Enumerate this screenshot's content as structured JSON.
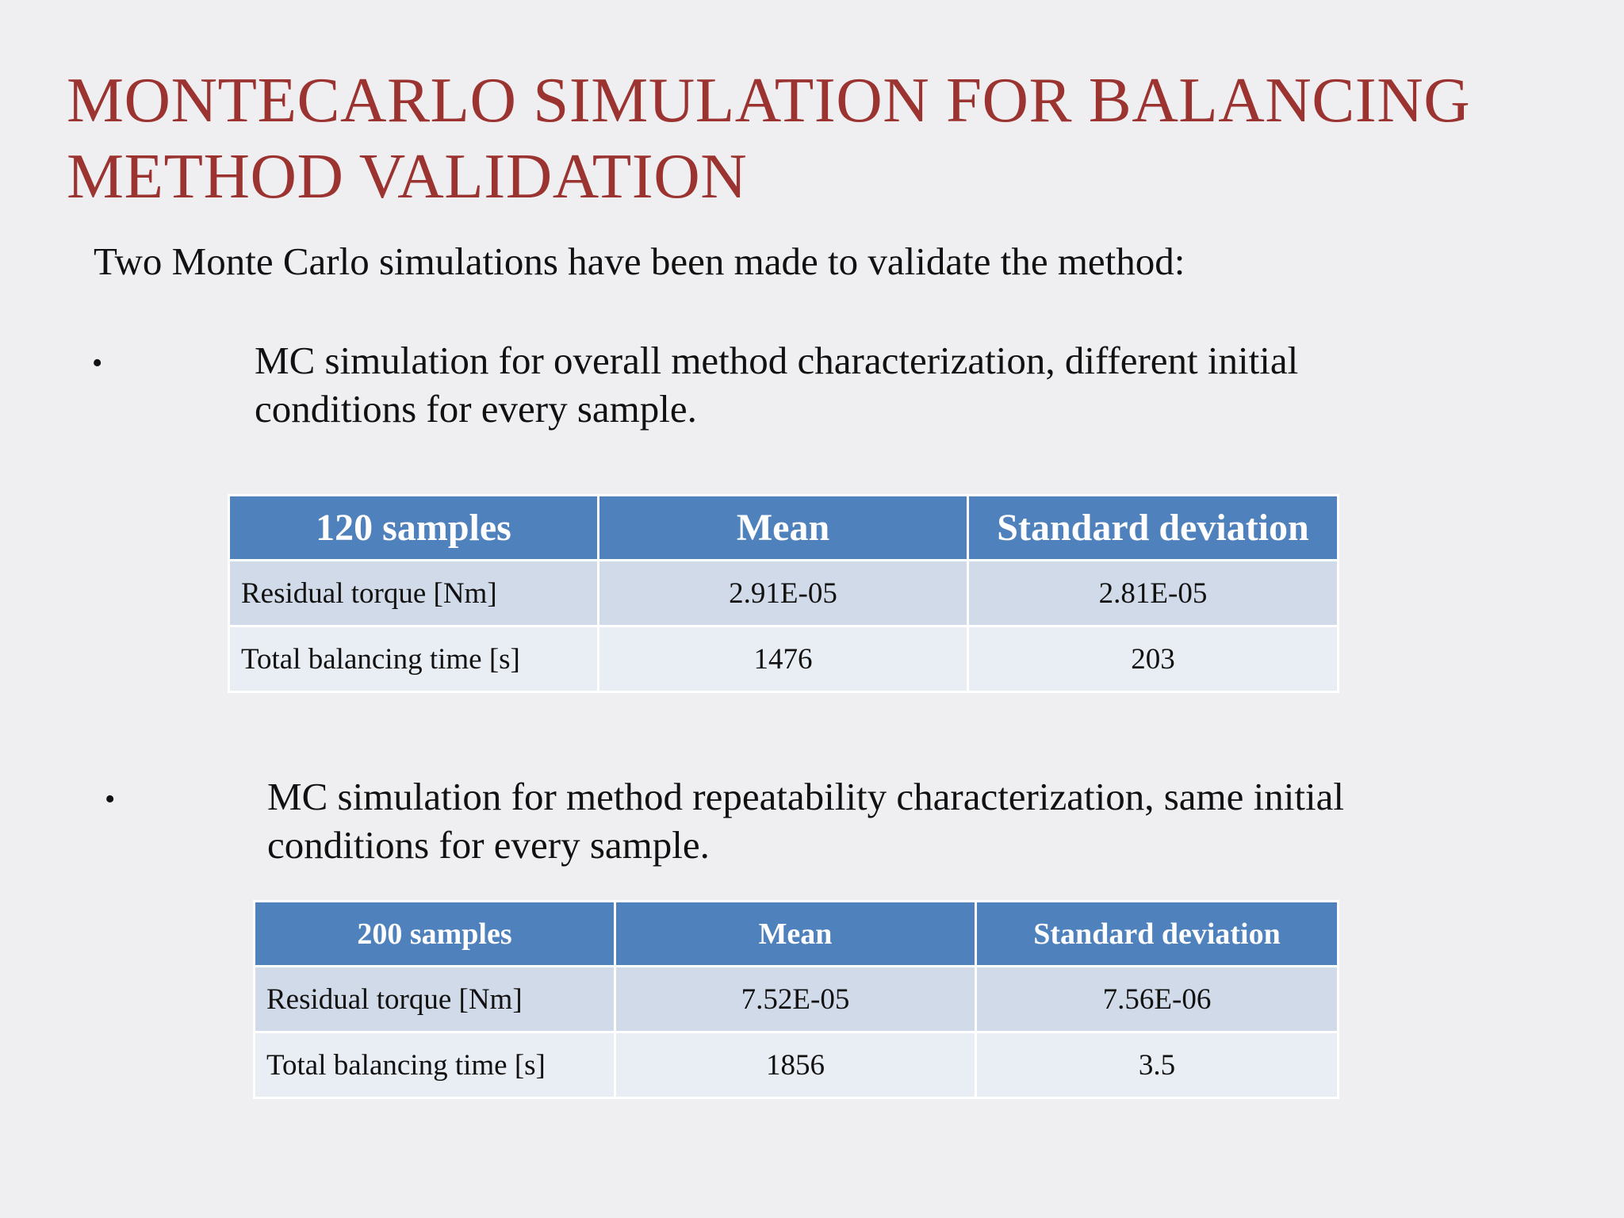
{
  "slide": {
    "title": "MONTECARLO SIMULATION FOR BALANCING METHOD VALIDATION",
    "intro": "Two Monte Carlo simulations have been made to validate the method:",
    "bullet_symbol": "•",
    "bullets": [
      {
        "text": "MC simulation for overall method characterization, different initial conditions for every sample."
      },
      {
        "text": "MC simulation for method repeatability characterization, same initial conditions for every sample."
      }
    ]
  },
  "table1": {
    "headers": [
      "120 samples",
      "Mean",
      "Standard deviation"
    ],
    "rows": [
      [
        "Residual torque [Nm]",
        "2.91E-05",
        "2.81E-05"
      ],
      [
        "Total balancing time [s]",
        "1476",
        "203"
      ]
    ]
  },
  "table2": {
    "headers": [
      "200 samples",
      "Mean",
      "Standard deviation"
    ],
    "rows": [
      [
        "Residual torque [Nm]",
        "7.52E-05",
        "7.56E-06"
      ],
      [
        "Total balancing time [s]",
        "1856",
        "3.5"
      ]
    ]
  },
  "colors": {
    "title": "#9b3331",
    "header_bg": "#4f81bd",
    "row_odd": "#d1dae8",
    "row_even": "#e9edf4",
    "background": "#efeef0"
  }
}
